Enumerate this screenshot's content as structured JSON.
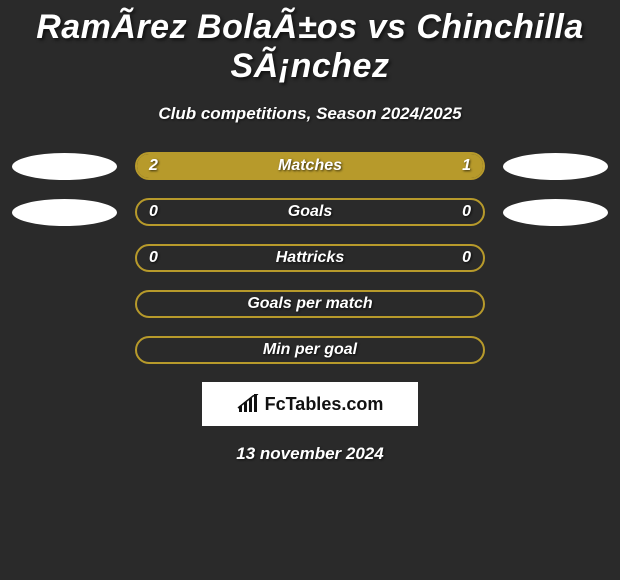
{
  "title": "RamÃ­rez BolaÃ±os vs Chinchilla SÃ¡nchez",
  "subtitle": "Club competitions, Season 2024/2025",
  "date": "13 november 2024",
  "brand": "FcTables.com",
  "colors": {
    "background": "#2a2a2a",
    "bar_fill": "#b79a2b",
    "bar_border": "#b79a2b",
    "oval": "#ffffff",
    "text": "#ffffff"
  },
  "rows": [
    {
      "label": "Matches",
      "left_value": "2",
      "right_value": "1",
      "left_pct": 66.7,
      "right_pct": 33.3,
      "show_left_oval": true,
      "show_right_oval": true
    },
    {
      "label": "Goals",
      "left_value": "0",
      "right_value": "0",
      "left_pct": 0,
      "right_pct": 0,
      "show_left_oval": true,
      "show_right_oval": true
    },
    {
      "label": "Hattricks",
      "left_value": "0",
      "right_value": "0",
      "left_pct": 0,
      "right_pct": 0,
      "show_left_oval": false,
      "show_right_oval": false
    },
    {
      "label": "Goals per match",
      "left_value": "",
      "right_value": "",
      "left_pct": 0,
      "right_pct": 0,
      "show_left_oval": false,
      "show_right_oval": false
    },
    {
      "label": "Min per goal",
      "left_value": "",
      "right_value": "",
      "left_pct": 0,
      "right_pct": 0,
      "show_left_oval": false,
      "show_right_oval": false
    }
  ]
}
